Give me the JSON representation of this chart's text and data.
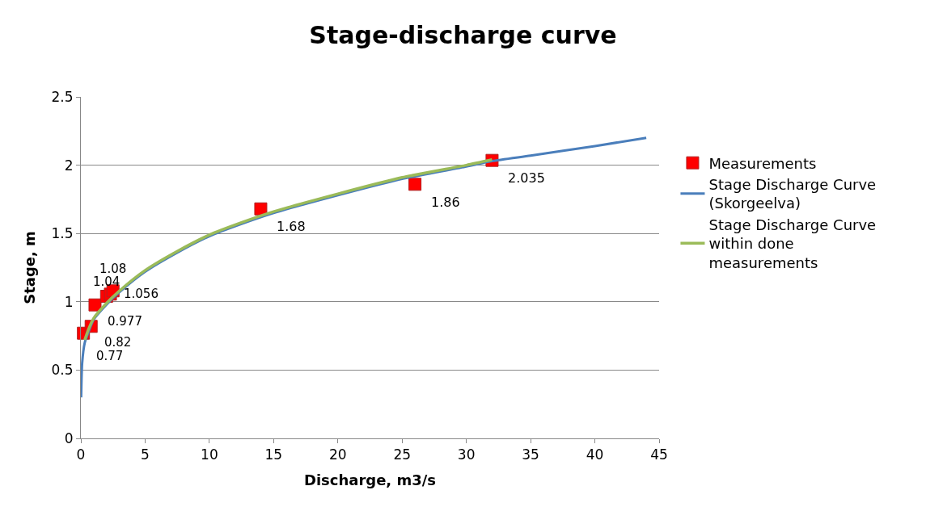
{
  "chart_data": {
    "type": "scatter",
    "title": "Stage-discharge curve",
    "xlabel": "Discharge, m3/s",
    "ylabel": "Stage, m",
    "xlim": [
      0,
      45
    ],
    "xticks": [
      0,
      5,
      10,
      15,
      20,
      25,
      30,
      35,
      40,
      45
    ],
    "ylim": [
      0,
      2.5
    ],
    "yticks": [
      0,
      0.5,
      1,
      1.5,
      2,
      2.5
    ],
    "grid": "y",
    "legend": "right",
    "series": [
      {
        "name": "Measurements",
        "type": "scatter",
        "marker": "square",
        "color": "#ff0000",
        "data_labels": true,
        "x": [
          0.2,
          0.8,
          1.1,
          2.0,
          2.3,
          2.5,
          14,
          26,
          32
        ],
        "values": [
          0.77,
          0.82,
          0.977,
          1.04,
          1.056,
          1.08,
          1.68,
          1.86,
          2.035
        ]
      },
      {
        "name": "Stage Discharge Curve (Skorgeelva)",
        "type": "line",
        "marker": "none",
        "color": "#4a7ebb",
        "x": [
          0.02,
          0.1,
          0.3,
          0.6,
          1,
          2,
          3,
          5,
          7.5,
          10,
          12.5,
          15,
          20,
          25,
          30,
          32,
          35,
          40,
          44
        ],
        "values": [
          0.3,
          0.55,
          0.7,
          0.78,
          0.87,
          0.98,
          1.07,
          1.22,
          1.36,
          1.48,
          1.57,
          1.65,
          1.78,
          1.9,
          1.99,
          2.03,
          2.07,
          2.14,
          2.2
        ]
      },
      {
        "name": "Stage Discharge Curve within done measurements",
        "type": "line",
        "marker": "none",
        "color": "#9bbb59",
        "x": [
          0.3,
          0.6,
          1,
          2,
          3,
          5,
          7.5,
          10,
          12.5,
          15,
          20,
          25,
          30,
          32
        ],
        "values": [
          0.72,
          0.8,
          0.88,
          0.99,
          1.08,
          1.23,
          1.37,
          1.49,
          1.58,
          1.66,
          1.79,
          1.91,
          2.0,
          2.04
        ]
      }
    ]
  }
}
